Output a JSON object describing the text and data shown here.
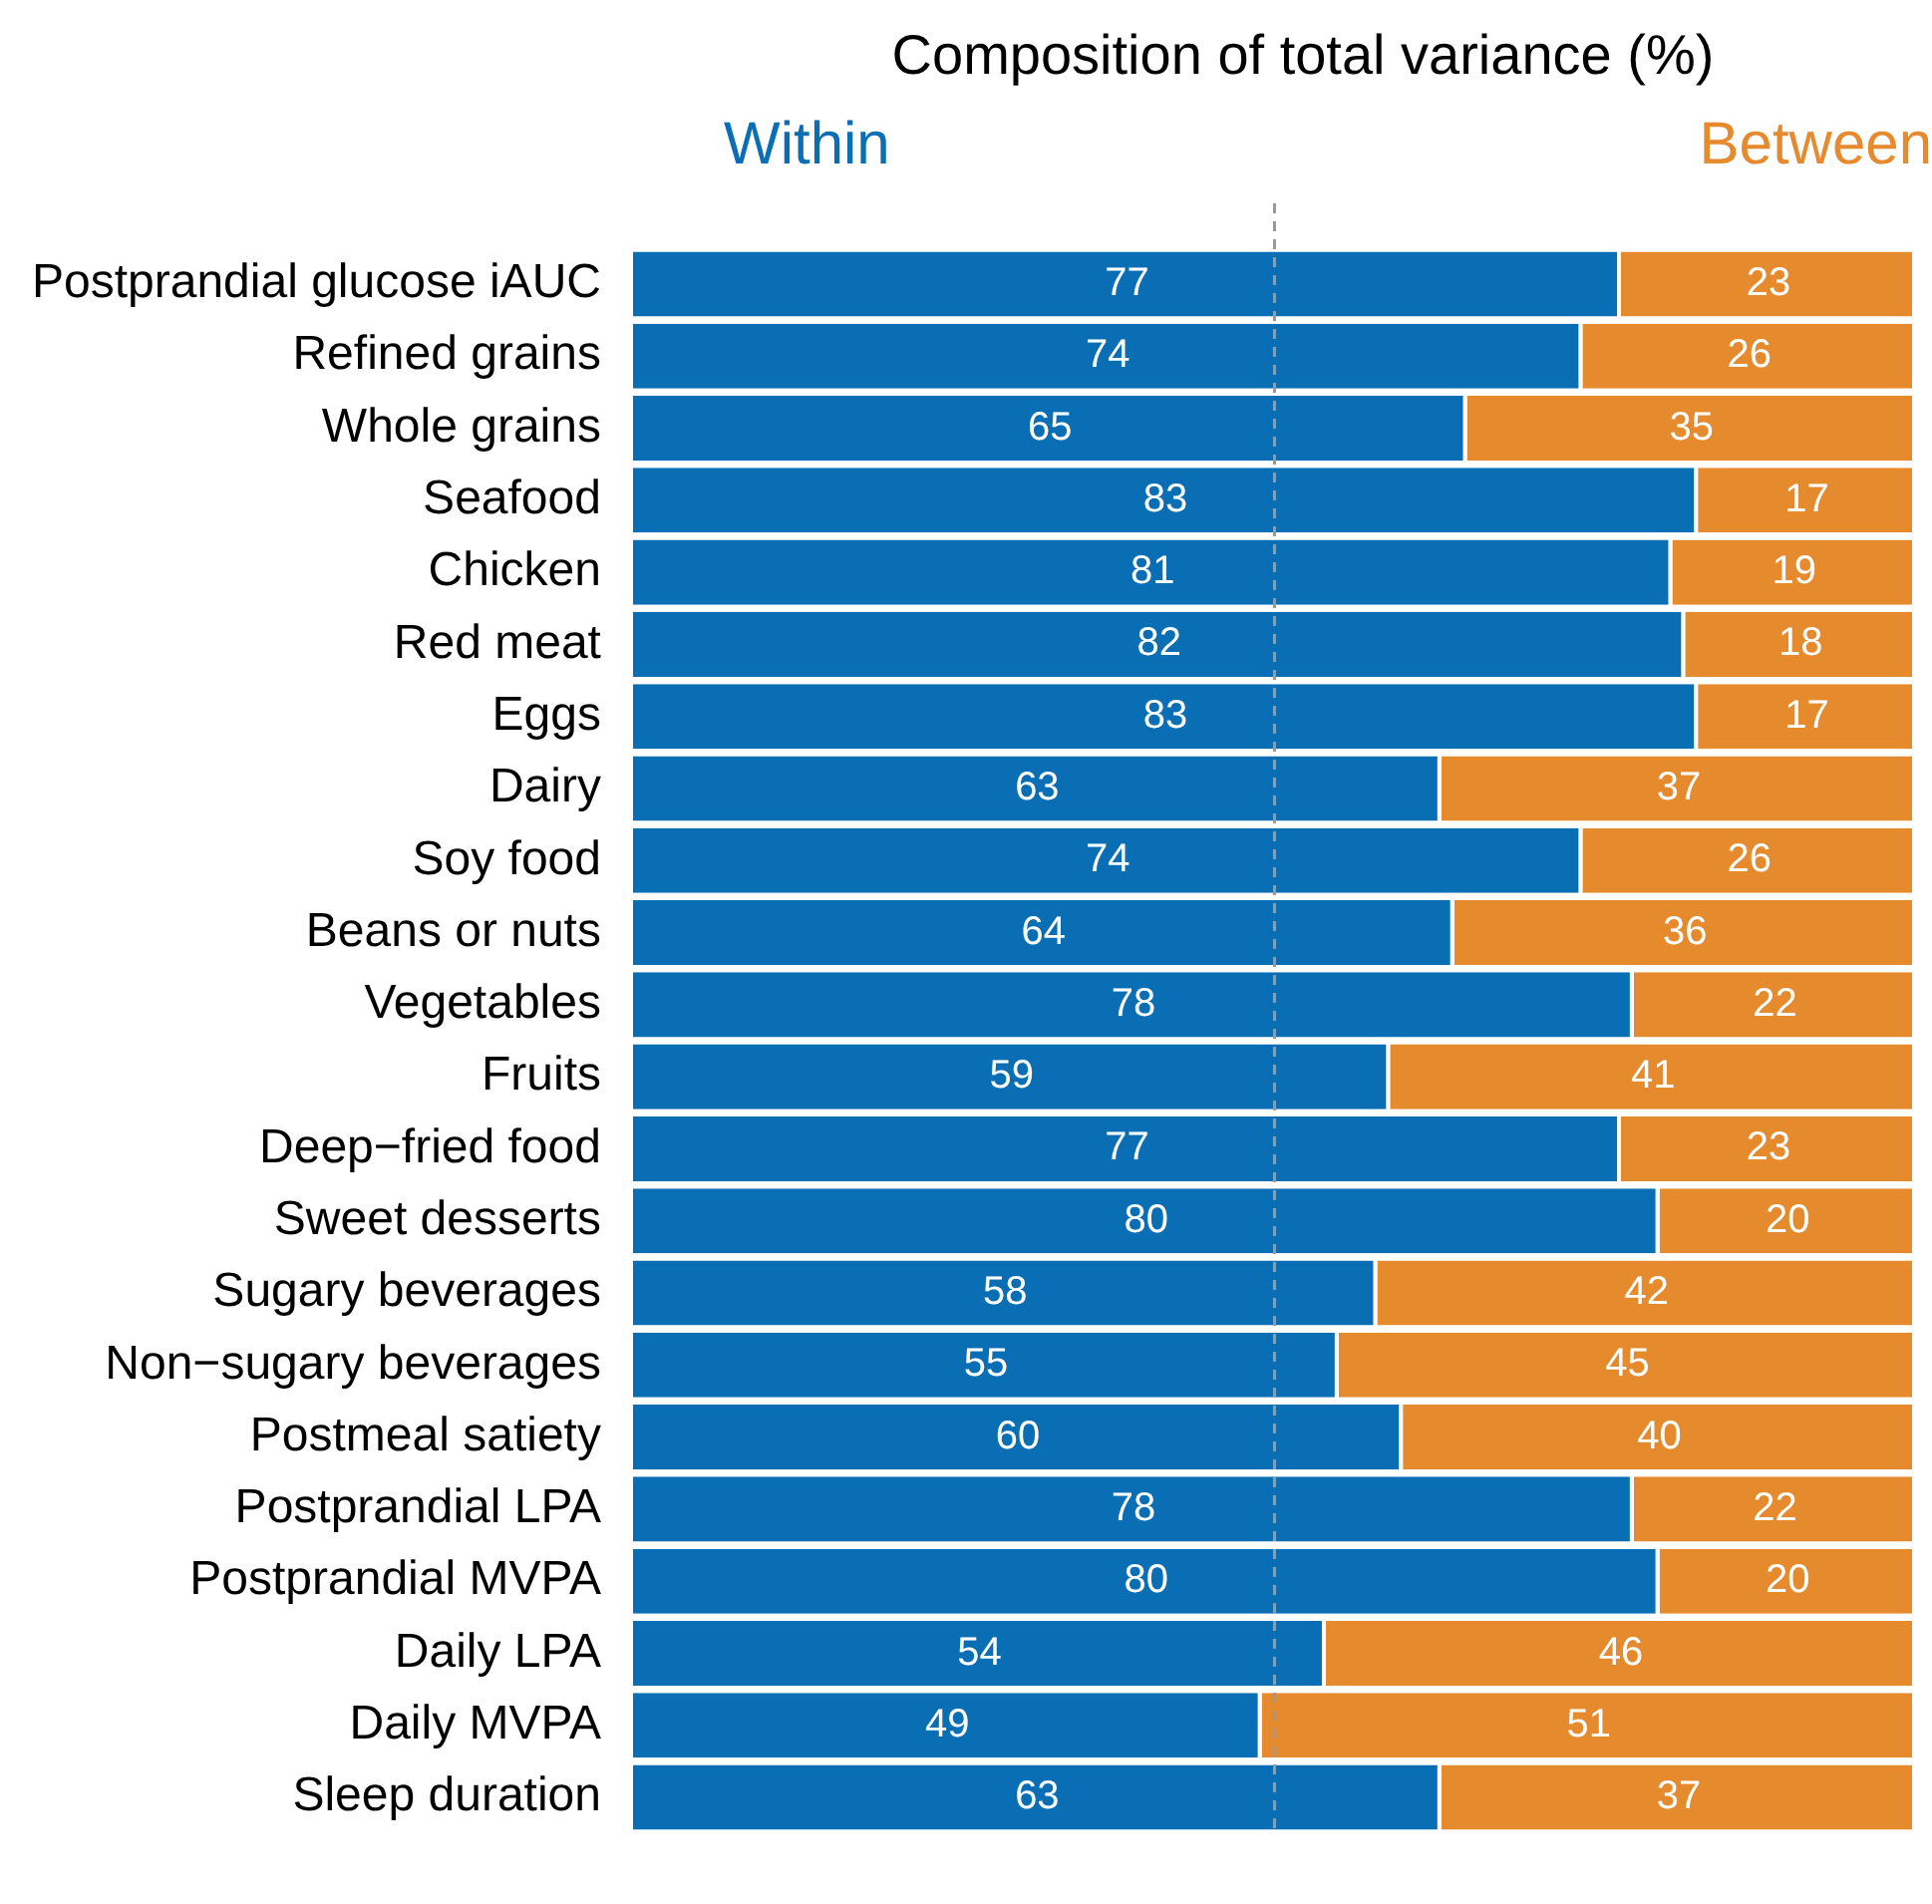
{
  "chart_data": {
    "type": "bar",
    "orientation": "horizontal",
    "stacked": true,
    "title": "Composition of total variance (%)",
    "categories": [
      "Postprandial glucose iAUC",
      "Refined grains",
      "Whole grains",
      "Seafood",
      "Chicken",
      "Red meat",
      "Eggs",
      "Dairy",
      "Soy food",
      "Beans or nuts",
      "Vegetables",
      "Fruits",
      "Deep−fried food",
      "Sweet desserts",
      "Sugary beverages",
      "Non−sugary beverages",
      "Postmeal satiety",
      "Postprandial LPA",
      "Postprandial MVPA",
      "Daily LPA",
      "Daily MVPA",
      "Sleep duration"
    ],
    "series": [
      {
        "name": "Within",
        "color": "#0a6eb4",
        "values": [
          77,
          74,
          65,
          83,
          81,
          82,
          83,
          63,
          74,
          64,
          78,
          59,
          77,
          80,
          58,
          55,
          60,
          78,
          80,
          54,
          49,
          63
        ]
      },
      {
        "name": "Between",
        "color": "#e68a2e",
        "values": [
          23,
          26,
          35,
          17,
          19,
          18,
          17,
          37,
          26,
          36,
          22,
          41,
          23,
          20,
          42,
          45,
          40,
          22,
          20,
          46,
          51,
          37
        ]
      }
    ],
    "xlim": [
      0,
      100
    ],
    "tick_labels": "y",
    "grid": false,
    "legend": "top",
    "data_labels": true,
    "ref_lines": [
      {
        "axis": "x",
        "value": 50,
        "color": "#999999",
        "line_style": "dashed"
      }
    ]
  }
}
